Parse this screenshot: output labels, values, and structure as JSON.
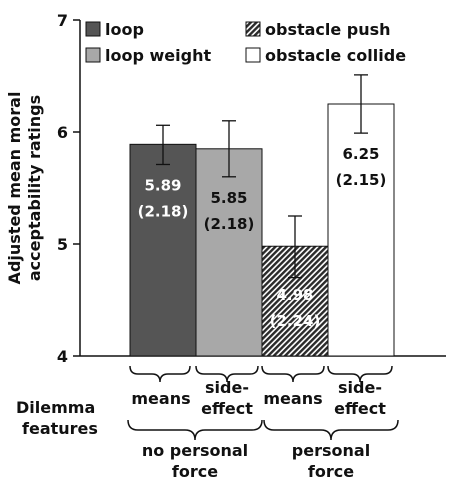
{
  "chart_data": {
    "type": "bar",
    "ylabel_lines": [
      "Adjusted mean moral",
      "acceptability ratings"
    ],
    "ylim": [
      4,
      7
    ],
    "yticks": [
      "4",
      "5",
      "6",
      "7"
    ],
    "series": [
      {
        "name": "loop",
        "value": 5.89,
        "label": "5.89",
        "sd_label": "(2.18)",
        "err_low": 5.71,
        "err_high": 6.06,
        "color": "#555555",
        "pattern": "solid"
      },
      {
        "name": "loop weight",
        "value": 5.85,
        "label": "5.85",
        "sd_label": "(2.18)",
        "err_low": 5.6,
        "err_high": 6.1,
        "color": "#a8a8a8",
        "pattern": "solid"
      },
      {
        "name": "obstacle push",
        "value": 4.98,
        "label": "4.98",
        "sd_label": "(2.24)",
        "err_low": 4.7,
        "err_high": 5.25,
        "color": "#2a2a2a",
        "pattern": "hatch"
      },
      {
        "name": "obstacle collide",
        "value": 6.25,
        "label": "6.25",
        "sd_label": "(2.15)",
        "err_low": 5.99,
        "err_high": 6.51,
        "color": "#ffffff",
        "pattern": "solid"
      }
    ],
    "x_feature_labels": [
      "means",
      "side-effect",
      "means",
      "side-effect"
    ],
    "x_group_labels": [
      {
        "line1": "no personal",
        "line2": "force"
      },
      {
        "line1": "personal",
        "line2": "force"
      }
    ],
    "row_title_lines": [
      "Dilemma",
      "features"
    ],
    "legend_position": "top",
    "grid": false
  }
}
